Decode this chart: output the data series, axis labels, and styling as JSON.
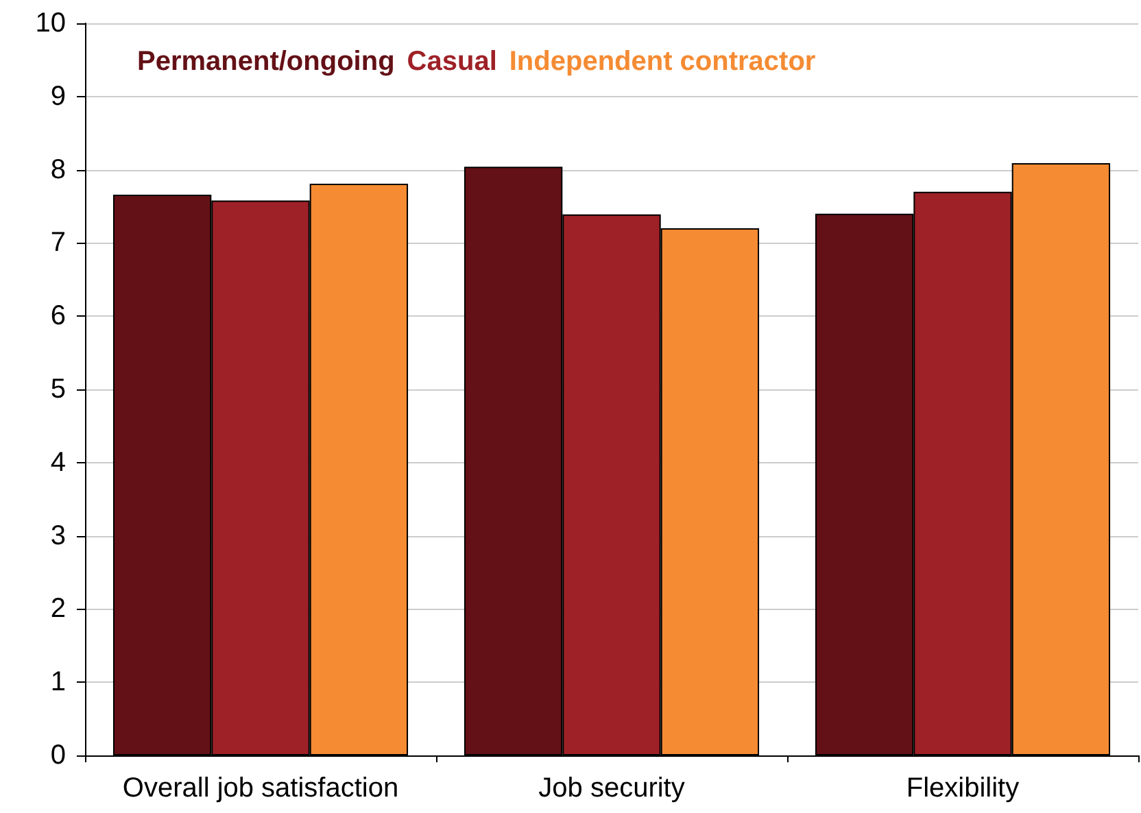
{
  "chart_data": {
    "type": "bar",
    "categories": [
      "Overall job satisfaction",
      "Job security",
      "Flexibility"
    ],
    "series": [
      {
        "name": "Permanent/ongoing",
        "color": "#631116",
        "values": [
          7.66,
          8.04,
          7.4
        ]
      },
      {
        "name": "Casual",
        "color": "#9e2127",
        "values": [
          7.58,
          7.39,
          7.7
        ]
      },
      {
        "name": "Independent contractor",
        "color": "#f58b33",
        "values": [
          7.81,
          7.2,
          8.09
        ]
      }
    ],
    "ylim": [
      0,
      10
    ],
    "yticks": [
      0,
      1,
      2,
      3,
      4,
      5,
      6,
      7,
      8,
      9,
      10
    ],
    "grid": "y",
    "legend": "top left"
  }
}
